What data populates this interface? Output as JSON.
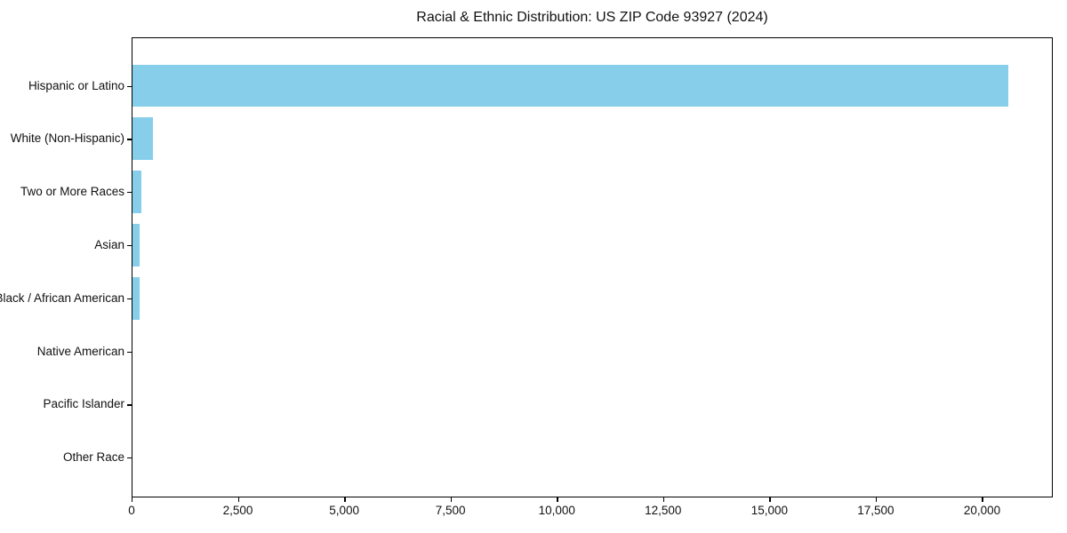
{
  "chart_data": {
    "type": "bar",
    "orientation": "horizontal",
    "title": "Racial & Ethnic Distribution: US ZIP Code 93927 (2024)",
    "categories": [
      "Hispanic or Latino",
      "White (Non-Hispanic)",
      "Two or More Races",
      "Asian",
      "Black / African American",
      "Native American",
      "Pacific Islander",
      "Other Race"
    ],
    "values": [
      20600,
      490,
      200,
      175,
      160,
      0,
      0,
      0
    ],
    "bar_color": "#87CEEB",
    "xlabel": "",
    "ylabel": "",
    "xlim": [
      0,
      21600
    ],
    "x_ticks": [
      0,
      2500,
      5000,
      7500,
      10000,
      12500,
      15000,
      17500,
      20000
    ],
    "x_tick_labels": [
      "0",
      "2,500",
      "5,000",
      "7,500",
      "10,000",
      "12,500",
      "15,000",
      "17,500",
      "20,000"
    ],
    "grid": false,
    "legend": "none",
    "spine_color": "#000000",
    "text_color": "#111111"
  }
}
